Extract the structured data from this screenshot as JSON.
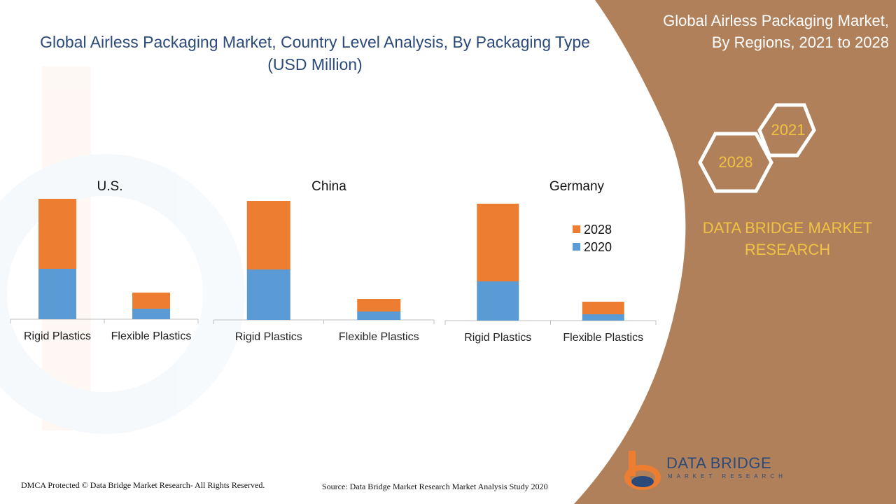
{
  "header": {
    "title_line1": "Global Airless Packaging Market, Country Level Analysis, By Packaging Type",
    "title_line2": "(USD Million)"
  },
  "side_panel": {
    "title_line1": "Global Airless Packaging Market,",
    "title_line2": "By Regions, 2021 to 2028",
    "hex_year_a": "2021",
    "hex_year_b": "2028",
    "brand_line1": "DATA BRIDGE MARKET",
    "brand_line2": "RESEARCH"
  },
  "logo": {
    "name": "DATA BRIDGE",
    "sub": "MARKET RESEARCH"
  },
  "footer": {
    "dmca": "DMCA Protected © Data Bridge Market Research- All Rights Reserved.",
    "source": "Source: Data Bridge Market Research Market Analysis Study 2020"
  },
  "colors": {
    "series_2020": "#5b9bd5",
    "series_2028": "#ed7d31",
    "panel": "#b0805a",
    "accent": "#f0c244",
    "title": "#2b4a7a"
  },
  "chart_data": [
    {
      "type": "bar",
      "stacked": true,
      "title": "U.S.",
      "categories": [
        "Rigid Plastics",
        "Flexible Plastics"
      ],
      "series": [
        {
          "name": "2020",
          "values": [
            72,
            15
          ]
        },
        {
          "name": "2028",
          "values": [
            100,
            23
          ]
        }
      ]
    },
    {
      "type": "bar",
      "stacked": true,
      "title": "China",
      "categories": [
        "Rigid Plastics",
        "Flexible Plastics"
      ],
      "series": [
        {
          "name": "2020",
          "values": [
            72,
            12
          ]
        },
        {
          "name": "2028",
          "values": [
            98,
            18
          ]
        }
      ]
    },
    {
      "type": "bar",
      "stacked": true,
      "title": "Germany",
      "categories": [
        "Rigid Plastics",
        "Flexible Plastics"
      ],
      "series": [
        {
          "name": "2020",
          "values": [
            56,
            9
          ]
        },
        {
          "name": "2028",
          "values": [
            111,
            18
          ]
        }
      ],
      "legend": [
        "2028",
        "2020"
      ],
      "legend_position": "right"
    }
  ]
}
